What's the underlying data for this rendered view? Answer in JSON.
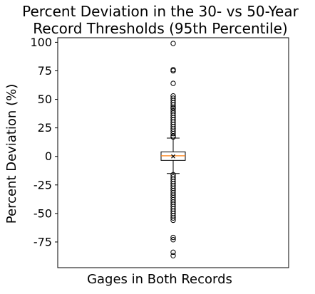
{
  "chart_data": {
    "type": "box",
    "title_lines": [
      "Percent Deviation in the 30- vs 50-Year",
      "Record Thresholds (95th Percentile)"
    ],
    "xlabel": "Gages in Both Records",
    "ylabel": "Percent Deviation (%)",
    "ylim": [
      -97.5,
      104
    ],
    "yticks": [
      100,
      75,
      50,
      25,
      0,
      -25,
      -50,
      -75
    ],
    "box": {
      "q1": -3.5,
      "median": 0.5,
      "q3": 4,
      "mean": 0,
      "whisker_low": -15,
      "whisker_high": 16
    },
    "outliers": [
      99,
      76,
      75,
      64,
      53,
      51,
      49,
      47,
      45,
      43,
      42,
      40,
      38,
      36,
      34,
      32,
      30,
      28,
      26,
      24,
      22,
      20,
      18,
      17,
      -16,
      -18,
      -20,
      -22,
      -24,
      -26,
      -28,
      -30,
      -32,
      -34,
      -36,
      -38,
      -40,
      -42,
      -44,
      -46,
      -48,
      -50,
      -52,
      -54,
      -56,
      -71,
      -73,
      -84,
      -87
    ],
    "colors": {
      "box_edge": "#000000",
      "median": "#ff7f0e",
      "outlier_edge": "#000000",
      "mean_marker": "#000000"
    },
    "grid": false
  }
}
